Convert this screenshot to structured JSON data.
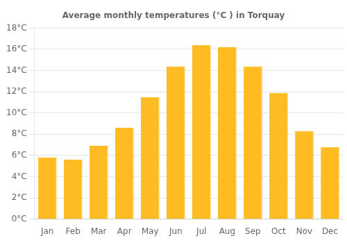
{
  "chart_data": {
    "type": "bar",
    "title": "Average monthly temperatures (°C ) in Torquay",
    "categories": [
      "Jan",
      "Feb",
      "Mar",
      "Apr",
      "May",
      "Jun",
      "Jul",
      "Aug",
      "Sep",
      "Oct",
      "Nov",
      "Dec"
    ],
    "values": [
      5.8,
      5.6,
      6.9,
      8.6,
      11.5,
      14.4,
      16.4,
      16.2,
      14.4,
      11.9,
      8.3,
      6.8
    ],
    "color": "#FFBB22",
    "ylim": [
      0,
      18
    ],
    "yticks": [
      {
        "value": 0,
        "label": "0°C"
      },
      {
        "value": 2,
        "label": "2°C"
      },
      {
        "value": 4,
        "label": "4°C"
      },
      {
        "value": 6,
        "label": "6°C"
      },
      {
        "value": 8,
        "label": "8°C"
      },
      {
        "value": 10,
        "label": "10°C"
      },
      {
        "value": 12,
        "label": "12°C"
      },
      {
        "value": 14,
        "label": "14°C"
      },
      {
        "value": 16,
        "label": "16°C"
      },
      {
        "value": 18,
        "label": "18°C"
      }
    ],
    "grid": true
  }
}
